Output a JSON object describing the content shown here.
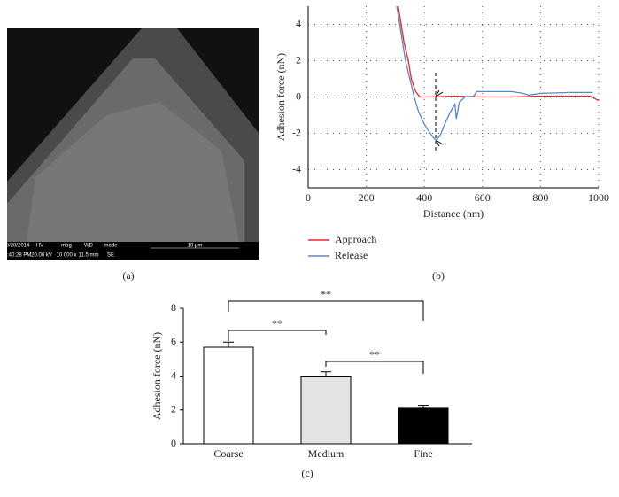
{
  "panels": {
    "a": "(a)",
    "b": "(b)",
    "c": "(c)"
  },
  "sem_info": {
    "row1": [
      "8/28/2014",
      "HV",
      "mag",
      "WD",
      "mode",
      "10 μm"
    ],
    "row2": [
      "4:40:28 PM",
      "20.00 kV",
      "10 000 x",
      "11.5 mm",
      "SE"
    ]
  },
  "chart_data": [
    {
      "type": "line",
      "x_label": "Distance (nm)",
      "y_label": "Adhesion force (nN)",
      "xlim": [
        0,
        1000
      ],
      "ylim": [
        -5,
        5
      ],
      "xticks": [
        0,
        200,
        400,
        600,
        800,
        1000
      ],
      "yticks": [
        -4,
        -2,
        0,
        2,
        4
      ],
      "grid": true,
      "legend": "below",
      "series": [
        {
          "name": "Approach",
          "color": "#e8262b",
          "x": [
            310,
            320,
            330,
            345,
            355,
            370,
            385,
            420,
            500,
            600,
            700,
            800,
            900,
            970,
            1000
          ],
          "values": [
            5,
            4,
            3,
            2,
            1,
            0.3,
            0,
            0,
            0.05,
            0,
            0,
            0.05,
            0.05,
            0.05,
            -0.2
          ]
        },
        {
          "name": "Release",
          "color": "#5b86c5",
          "x": [
            305,
            315,
            325,
            335,
            350,
            365,
            380,
            400,
            420,
            440,
            455,
            470,
            490,
            505,
            510,
            520,
            540,
            570,
            580,
            650,
            700,
            740,
            760,
            800,
            900,
            980
          ],
          "values": [
            5,
            4,
            3,
            2,
            1,
            0,
            -0.8,
            -1.5,
            -2,
            -2.4,
            -2.1,
            -1.5,
            -0.8,
            -0.4,
            -1.2,
            -0.3,
            0,
            0.05,
            0.3,
            0.3,
            0.3,
            0.2,
            0.1,
            0.2,
            0.25,
            0.25
          ]
        }
      ]
    },
    {
      "type": "bar",
      "y_label": "Adhesion force (nN)",
      "categories": [
        "Coarse",
        "Medium",
        "Fine"
      ],
      "values": [
        5.7,
        4.0,
        2.15
      ],
      "errors": [
        0.3,
        0.25,
        0.12
      ],
      "colors": [
        "#ffffff",
        "#e3e3e3",
        "#000000"
      ],
      "ylim": [
        0,
        8
      ],
      "yticks": [
        0,
        2,
        4,
        6,
        8
      ],
      "annotations": [
        "**",
        "**",
        "**"
      ]
    }
  ]
}
